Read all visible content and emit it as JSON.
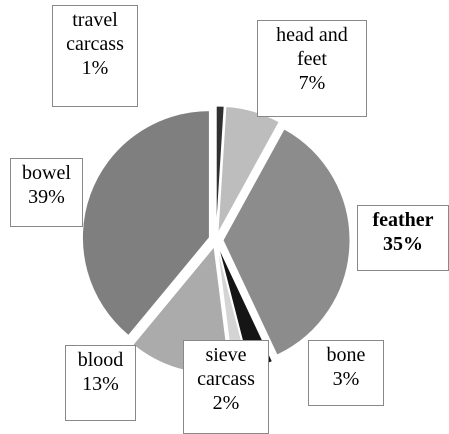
{
  "chart_data": {
    "type": "pie",
    "categories": [
      "travel carcass",
      "head and feet",
      "feather",
      "bone",
      "sieve carcass",
      "blood",
      "bowel"
    ],
    "values": [
      1,
      7,
      35,
      3,
      2,
      13,
      39
    ],
    "value_labels": [
      "1%",
      "7%",
      "35%",
      "3%",
      "2%",
      "13%",
      "39%"
    ],
    "colors": [
      "#303030",
      "#bdbdbd",
      "#8c8c8c",
      "#151515",
      "#d4d4d4",
      "#ababab",
      "#7f7f7f"
    ],
    "bold": [
      false,
      false,
      true,
      false,
      false,
      false,
      false
    ]
  }
}
